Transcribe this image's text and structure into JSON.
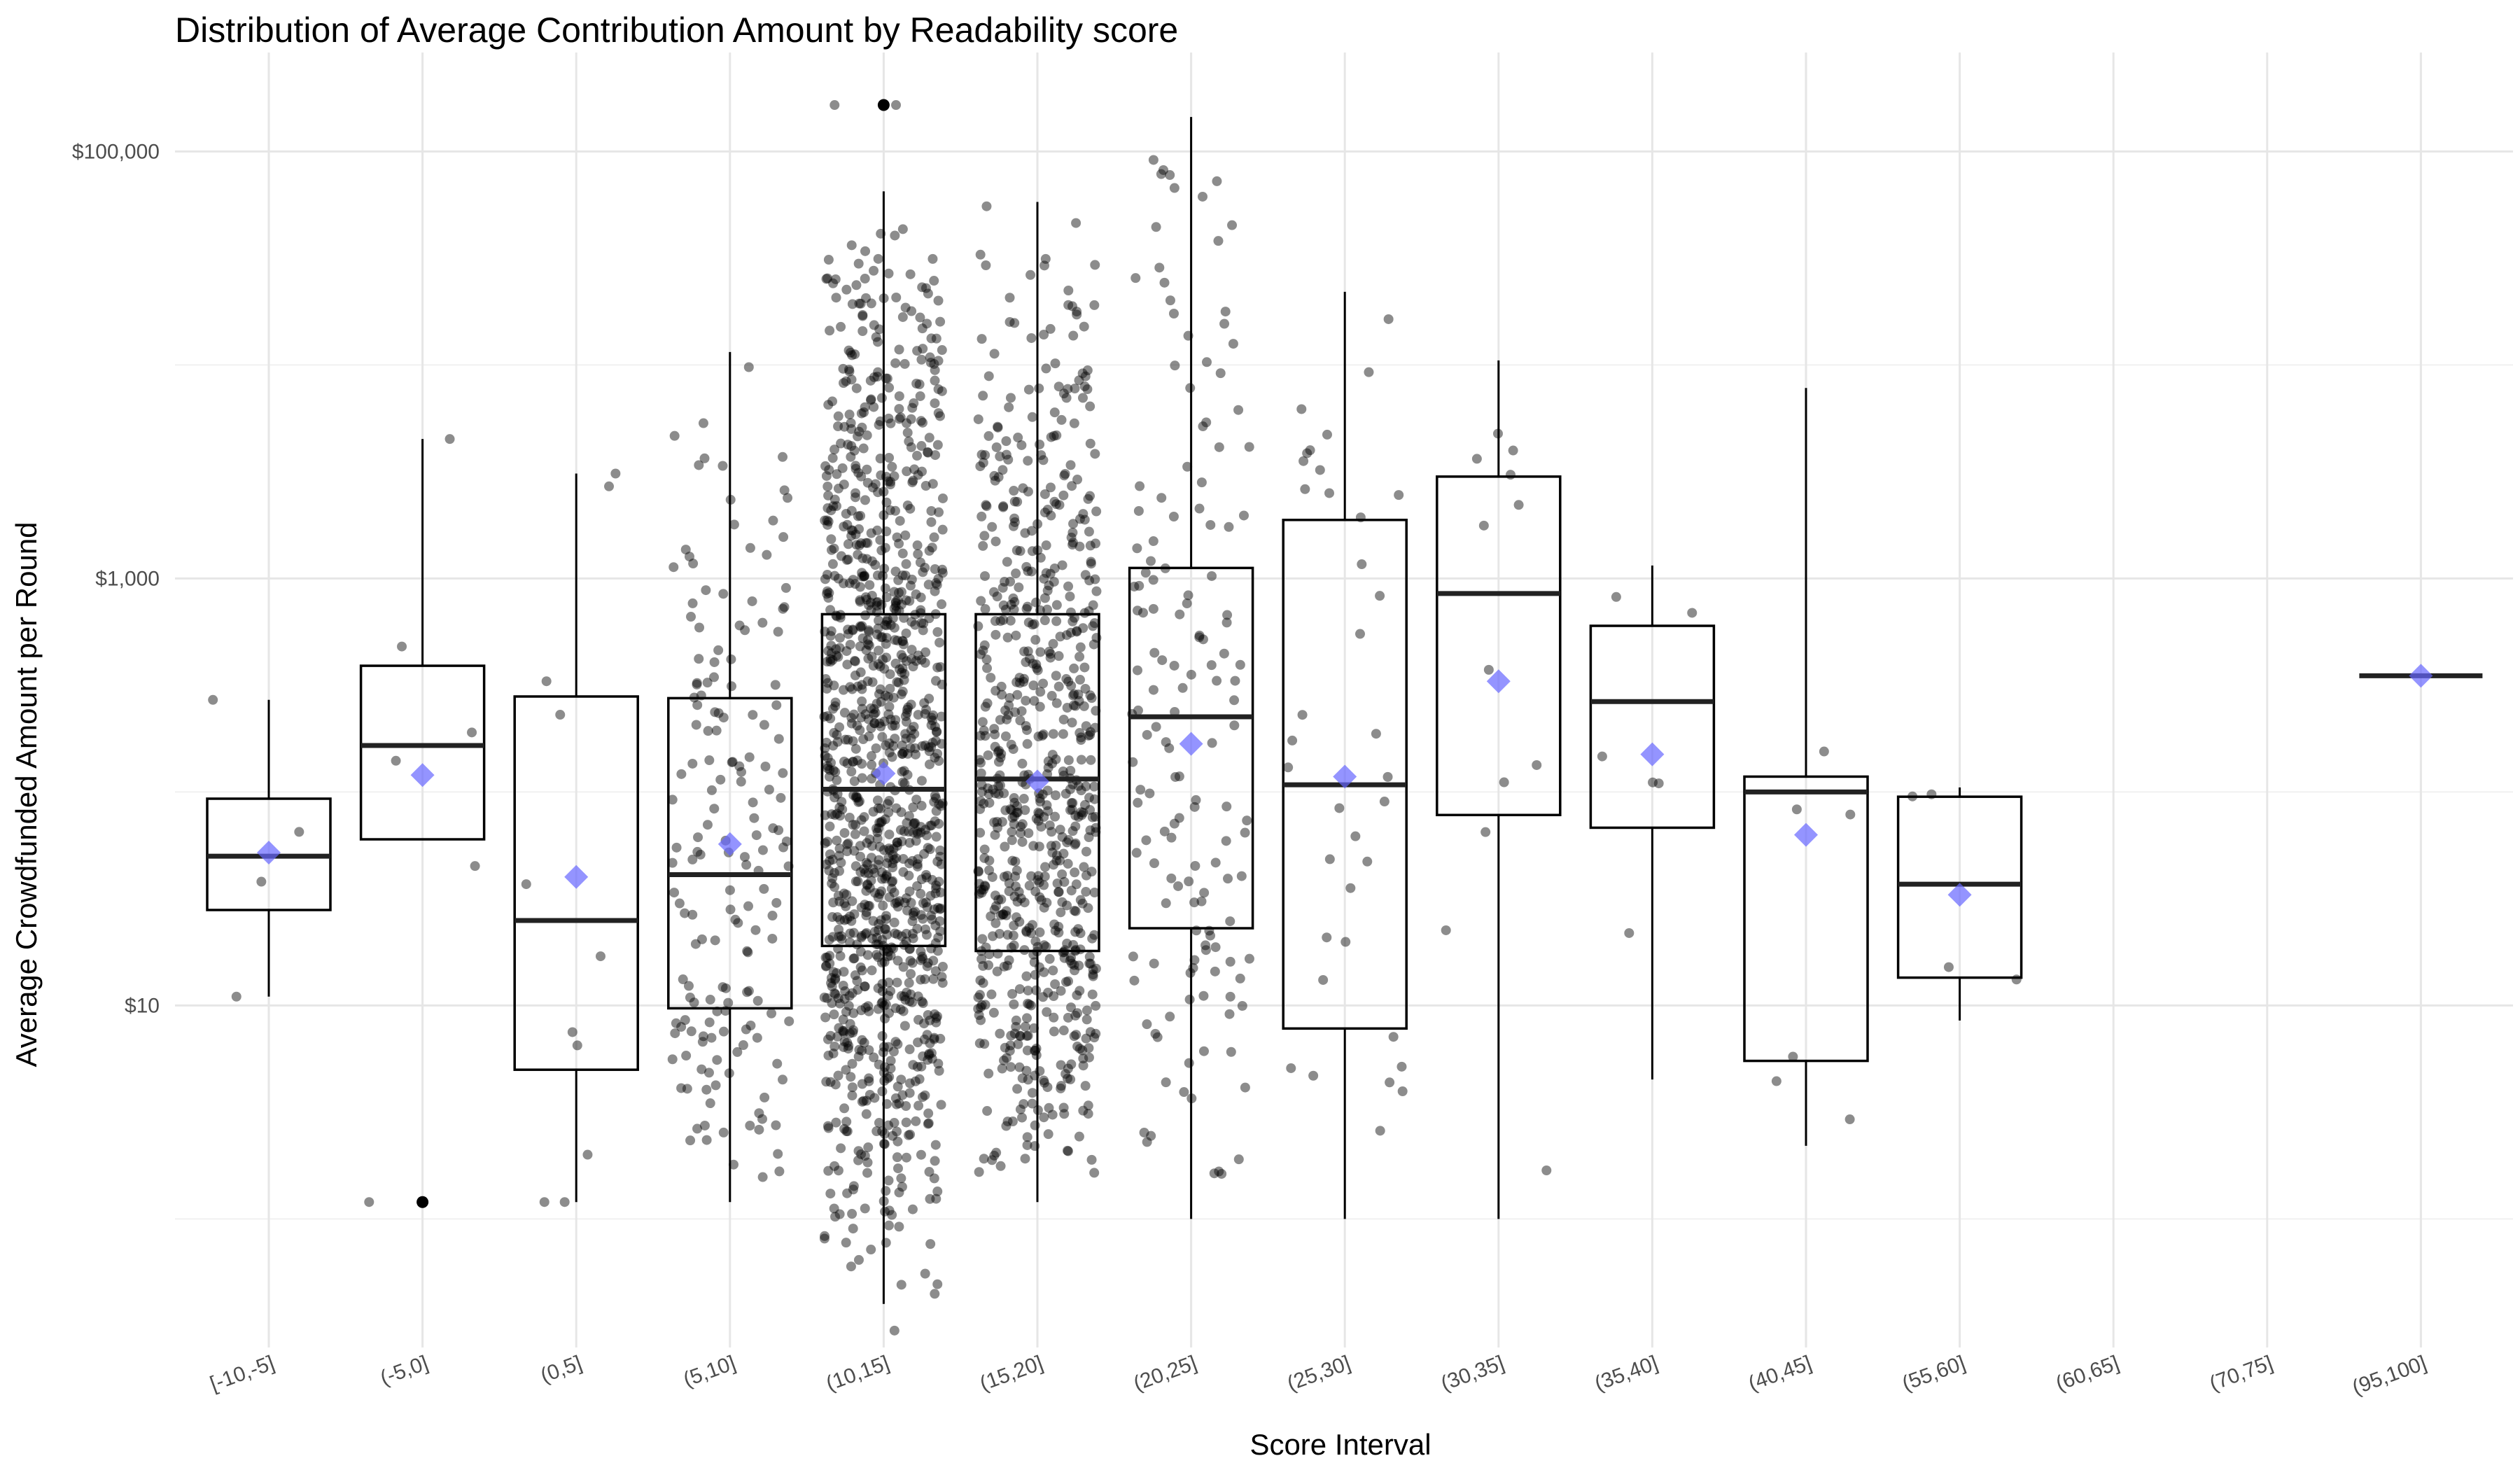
{
  "chart_data": {
    "type": "boxplot",
    "title": "Distribution of Average Contribution Amount by Readability score",
    "xlabel": "Score Interval",
    "ylabel": "Average Crowdfunded Amount per Round",
    "y_scale": "log10",
    "ylim": [
      0.25,
      250000
    ],
    "y_ticks": [
      {
        "value": 10,
        "label": "$10"
      },
      {
        "value": 1000,
        "label": "$1,000"
      },
      {
        "value": 100000,
        "label": "$100,000"
      }
    ],
    "grid": true,
    "legend": "none",
    "colors": {
      "box": "#000000",
      "median": "#222222",
      "point": "#000000",
      "mean_marker": "#6666ff",
      "grid": "#e6e6e6"
    },
    "categories": [
      "[-10,-5]",
      "(-5,0]",
      "(0,5]",
      "(5,10]",
      "(10,15]",
      "(15,20]",
      "(20,25]",
      "(25,30]",
      "(30,35]",
      "(35,40]",
      "(40,45]",
      "(55,60]",
      "(60,65]",
      "(70,75]",
      "(95,100]"
    ],
    "boxes": [
      {
        "category": "[-10,-5]",
        "whisker_low": 11,
        "q1": 28,
        "median": 50,
        "q3": 93,
        "whisker_high": 270,
        "mean": 52,
        "outliers": []
      },
      {
        "category": "(-5,0]",
        "whisker_low": 60,
        "q1": 60,
        "median": 165,
        "q3": 390,
        "whisker_high": 4500,
        "mean": 120,
        "outliers": [
          1.2
        ]
      },
      {
        "category": "(0,5]",
        "whisker_low": 1.2,
        "q1": 5,
        "median": 25,
        "q3": 280,
        "whisker_high": 3100,
        "mean": 40,
        "outliers": []
      },
      {
        "category": "(5,10]",
        "whisker_low": 1.2,
        "q1": 9.7,
        "median": 41,
        "q3": 275,
        "whisker_high": 11500,
        "mean": 57,
        "outliers": []
      },
      {
        "category": "(10,15]",
        "whisker_low": 0.4,
        "q1": 19,
        "median": 103,
        "q3": 680,
        "whisker_high": 65000,
        "mean": 122,
        "outliers": [
          165000
        ]
      },
      {
        "category": "(15,20]",
        "whisker_low": 1.2,
        "q1": 18,
        "median": 115,
        "q3": 680,
        "whisker_high": 58000,
        "mean": 112,
        "outliers": []
      },
      {
        "category": "(20,25]",
        "whisker_low": 1.0,
        "q1": 23,
        "median": 225,
        "q3": 1120,
        "whisker_high": 145000,
        "mean": 168,
        "outliers": []
      },
      {
        "category": "(25,30]",
        "whisker_low": 1.0,
        "q1": 7.8,
        "median": 108,
        "q3": 1880,
        "whisker_high": 22000,
        "mean": 118,
        "outliers": []
      },
      {
        "category": "(30,35]",
        "whisker_low": 1.0,
        "q1": 78,
        "median": 850,
        "q3": 3000,
        "whisker_high": 10500,
        "mean": 330,
        "outliers": []
      },
      {
        "category": "(35,40]",
        "whisker_low": 4.5,
        "q1": 68,
        "median": 265,
        "q3": 600,
        "whisker_high": 1150,
        "mean": 150,
        "outliers": []
      },
      {
        "category": "(40,45]",
        "whisker_low": 2.2,
        "q1": 5.5,
        "median": 100,
        "q3": 118,
        "whisker_high": 7800,
        "mean": 63,
        "outliers": []
      },
      {
        "category": "(55,60]",
        "whisker_low": 8.5,
        "q1": 13.5,
        "median": 37,
        "q3": 95,
        "whisker_high": 105,
        "mean": 33,
        "outliers": []
      },
      {
        "category": "(60,65]",
        "whisker_low": null,
        "q1": null,
        "median": null,
        "q3": null,
        "whisker_high": null,
        "mean": null,
        "outliers": []
      },
      {
        "category": "(70,75]",
        "whisker_low": null,
        "q1": null,
        "median": null,
        "q3": null,
        "whisker_high": null,
        "mean": null,
        "outliers": []
      },
      {
        "category": "(95,100]",
        "whisker_low": 350,
        "q1": 350,
        "median": 350,
        "q3": 350,
        "whisker_high": 350,
        "mean": 350,
        "outliers": []
      }
    ],
    "jitter_points": [
      {
        "category": "[-10,-5]",
        "values": [
          270,
          65,
          38,
          11
        ]
      },
      {
        "category": "(-5,0]",
        "values": [
          4500,
          480,
          190,
          140,
          45,
          1.2
        ]
      },
      {
        "category": "(0,5]",
        "values": [
          3100,
          2700,
          330,
          230,
          37,
          17,
          7.5,
          6.5,
          2.0,
          1.2,
          1.2
        ]
      },
      {
        "category": "(10,15]",
        "values": [
          165000,
          165000,
          0.3
        ]
      }
    ]
  }
}
